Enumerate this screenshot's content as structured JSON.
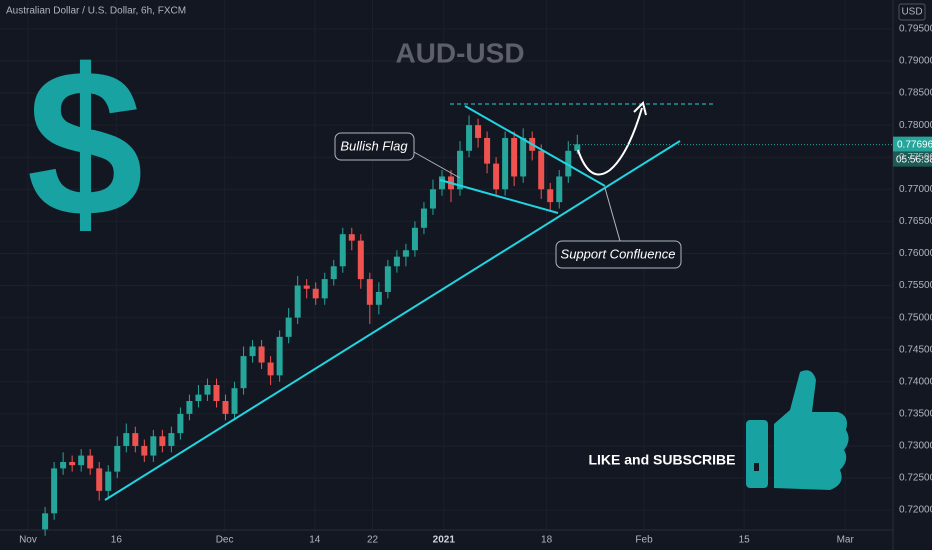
{
  "chart_data": {
    "type": "candlestick",
    "header": "Australian Dollar / U.S. Dollar, 6h, FXCM",
    "title": "AUD-USD",
    "currency": "USD",
    "last_price": 0.77696,
    "countdown": "05:56:38",
    "annotations": [
      "Bullish Flag",
      "Support Confluence",
      "LIKE and SUBSCRIBE",
      "$"
    ],
    "up_color": "#26a69a",
    "down_color": "#ef5350",
    "open": [
      0.717,
      0.7195,
      0.7265,
      0.7275,
      0.727,
      0.7285,
      0.7265,
      0.723,
      0.726,
      0.73,
      0.732,
      0.73,
      0.7285,
      0.7315,
      0.73,
      0.732,
      0.735,
      0.737,
      0.738,
      0.7395,
      0.737,
      0.735,
      0.739,
      0.744,
      0.7455,
      0.743,
      0.741,
      0.747,
      0.75,
      0.755,
      0.7545,
      0.753,
      0.756,
      0.758,
      0.763,
      0.762,
      0.756,
      0.752,
      0.754,
      0.758,
      0.7595,
      0.7605,
      0.764,
      0.767,
      0.77,
      0.772,
      0.77,
      0.776,
      0.78,
      0.778,
      0.774,
      0.77,
      0.778,
      0.772,
      0.778,
      0.776,
      0.77,
      0.768,
      0.772,
      0.776
    ],
    "high": [
      0.7205,
      0.7275,
      0.729,
      0.7285,
      0.7295,
      0.7295,
      0.7275,
      0.727,
      0.7315,
      0.7335,
      0.733,
      0.731,
      0.7325,
      0.7325,
      0.733,
      0.736,
      0.738,
      0.7395,
      0.7405,
      0.7405,
      0.738,
      0.74,
      0.7455,
      0.7465,
      0.7465,
      0.744,
      0.748,
      0.7515,
      0.7565,
      0.756,
      0.7555,
      0.757,
      0.759,
      0.764,
      0.764,
      0.763,
      0.757,
      0.7555,
      0.759,
      0.7605,
      0.7615,
      0.765,
      0.768,
      0.7715,
      0.773,
      0.773,
      0.7775,
      0.7815,
      0.781,
      0.779,
      0.775,
      0.779,
      0.779,
      0.7795,
      0.779,
      0.777,
      0.771,
      0.773,
      0.7775,
      0.7785
    ],
    "low": [
      0.716,
      0.7185,
      0.7255,
      0.726,
      0.726,
      0.7255,
      0.7215,
      0.722,
      0.725,
      0.729,
      0.729,
      0.7275,
      0.7275,
      0.729,
      0.729,
      0.731,
      0.734,
      0.736,
      0.737,
      0.736,
      0.734,
      0.734,
      0.738,
      0.743,
      0.742,
      0.7395,
      0.74,
      0.746,
      0.749,
      0.753,
      0.752,
      0.752,
      0.755,
      0.757,
      0.7605,
      0.7545,
      0.749,
      0.7505,
      0.753,
      0.757,
      0.758,
      0.7595,
      0.763,
      0.766,
      0.769,
      0.768,
      0.769,
      0.775,
      0.7765,
      0.7725,
      0.769,
      0.769,
      0.7705,
      0.771,
      0.7745,
      0.7685,
      0.7665,
      0.767,
      0.771,
      0.7755
    ],
    "close": [
      0.7195,
      0.7265,
      0.7275,
      0.727,
      0.7285,
      0.7265,
      0.723,
      0.726,
      0.73,
      0.732,
      0.73,
      0.7285,
      0.7315,
      0.73,
      0.732,
      0.735,
      0.737,
      0.738,
      0.7395,
      0.737,
      0.735,
      0.739,
      0.744,
      0.7455,
      0.743,
      0.741,
      0.747,
      0.75,
      0.755,
      0.7545,
      0.753,
      0.756,
      0.758,
      0.763,
      0.762,
      0.756,
      0.752,
      0.754,
      0.758,
      0.7595,
      0.7605,
      0.764,
      0.767,
      0.77,
      0.772,
      0.77,
      0.776,
      0.78,
      0.778,
      0.774,
      0.77,
      0.778,
      0.772,
      0.778,
      0.776,
      0.77,
      0.768,
      0.772,
      0.776,
      0.777
    ],
    "xlim": [
      -5,
      94
    ],
    "xticks": [
      {
        "value": -1.9,
        "label": "Nov"
      },
      {
        "value": 7.9,
        "label": "16"
      },
      {
        "value": 19.9,
        "label": "Dec"
      },
      {
        "value": 29.9,
        "label": "14"
      },
      {
        "value": 36.3,
        "label": "22"
      },
      {
        "value": 44.2,
        "label": "2021"
      },
      {
        "value": 55.6,
        "label": "18"
      },
      {
        "value": 66.4,
        "label": "Feb"
      },
      {
        "value": 77.5,
        "label": "15"
      },
      {
        "value": 88.7,
        "label": "Mar"
      }
    ],
    "ylim": [
      0.7169,
      0.7995
    ],
    "yticks": [
      {
        "value": 0.795,
        "label": "0.79500"
      },
      {
        "value": 0.79,
        "label": "0.79000"
      },
      {
        "value": 0.785,
        "label": "0.78500"
      },
      {
        "value": 0.78,
        "label": "0.78000"
      },
      {
        "value": 0.775,
        "label": "0.77500"
      },
      {
        "value": 0.77,
        "label": "0.77000"
      },
      {
        "value": 0.765,
        "label": "0.76500"
      },
      {
        "value": 0.76,
        "label": "0.76000"
      },
      {
        "value": 0.755,
        "label": "0.75500"
      },
      {
        "value": 0.75,
        "label": "0.75000"
      },
      {
        "value": 0.745,
        "label": "0.74500"
      },
      {
        "value": 0.74,
        "label": "0.74000"
      },
      {
        "value": 0.735,
        "label": "0.73500"
      },
      {
        "value": 0.73,
        "label": "0.73000"
      },
      {
        "value": 0.725,
        "label": "0.72500"
      },
      {
        "value": 0.72,
        "label": "0.72000"
      }
    ],
    "grid": true
  }
}
